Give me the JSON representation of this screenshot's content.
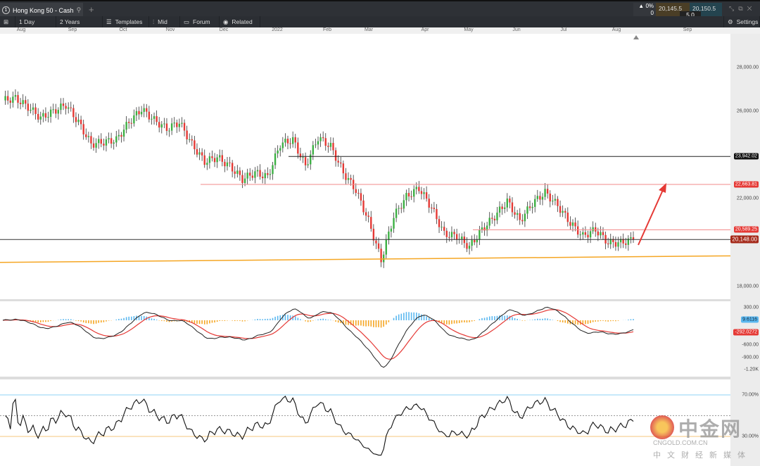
{
  "window": {
    "tab_number": "1",
    "tab_title": "Hong Kong 50 - Cash",
    "change_pct": "0%",
    "change_val": "0",
    "bid": "20,145.5",
    "ask": "20,150.5",
    "spread": "5.0"
  },
  "toolbar": {
    "interval": "1 Day",
    "range": "2 Years",
    "templates": "Templates",
    "price_type": "Mid",
    "forum": "Forum",
    "related": "Related",
    "settings": "Settings"
  },
  "colors": {
    "up": "#3cb043",
    "down": "#e53935",
    "trend": "#f5a623",
    "level_red": "#f28b8b",
    "arrow": "#e53935"
  },
  "chart_data": [
    {
      "type": "candlestick",
      "title": "Hong Kong 50 - Cash",
      "ylim": [
        17500,
        29500
      ],
      "y_ticks": [
        "28,000.00",
        "26,000.00",
        "22,000.00",
        "18,000.00"
      ],
      "x_ticks": [
        "Aug",
        "Sep",
        "Oct",
        "Nov",
        "Dec",
        "2022",
        "Feb",
        "Mar",
        "Apr",
        "May",
        "Jun",
        "Jul",
        "Aug",
        "Sep"
      ],
      "closes_weekly": [
        26500,
        26600,
        26200,
        25700,
        26000,
        26300,
        25500,
        24500,
        24600,
        24700,
        25500,
        26100,
        25600,
        25200,
        25500,
        24500,
        23700,
        23900,
        23500,
        22900,
        23200,
        23000,
        24500,
        24700,
        23500,
        24800,
        24400,
        23200,
        22400,
        21000,
        19200,
        21200,
        22100,
        22500,
        21600,
        20400,
        20300,
        19800,
        20600,
        21200,
        21900,
        21000,
        21800,
        22300,
        21700,
        20900,
        20300,
        20600,
        20000,
        20000,
        20148
      ],
      "levels": [
        {
          "value": 23942.02,
          "label": "23,942.02",
          "color": "#222222"
        },
        {
          "value": 22663.81,
          "label": "22,663.81",
          "color": "#f28b8b"
        },
        {
          "value": 20589.25,
          "label": "20,589.25",
          "color": "#f28b8b"
        },
        {
          "value": 20148.0,
          "label": "20,148.00",
          "color": "#333333"
        }
      ],
      "trendline": {
        "from": 19100,
        "to": 19400
      }
    },
    {
      "type": "macd",
      "ylim": [
        -1300,
        400
      ],
      "y_ticks": [
        "300.00",
        "-600.00",
        "-900.00",
        "-1.20K"
      ],
      "signal_label": "9.6116",
      "macd_label": "-292.0272"
    },
    {
      "type": "rsi",
      "ylim": [
        10,
        80
      ],
      "y_ticks": [
        "70.00%",
        "30.00%"
      ],
      "levels": [
        70,
        50,
        30
      ]
    }
  ],
  "watermark": {
    "brand": "中金网",
    "url": "CNGOLD.COM.CN",
    "tagline": "中文财经新媒体"
  }
}
